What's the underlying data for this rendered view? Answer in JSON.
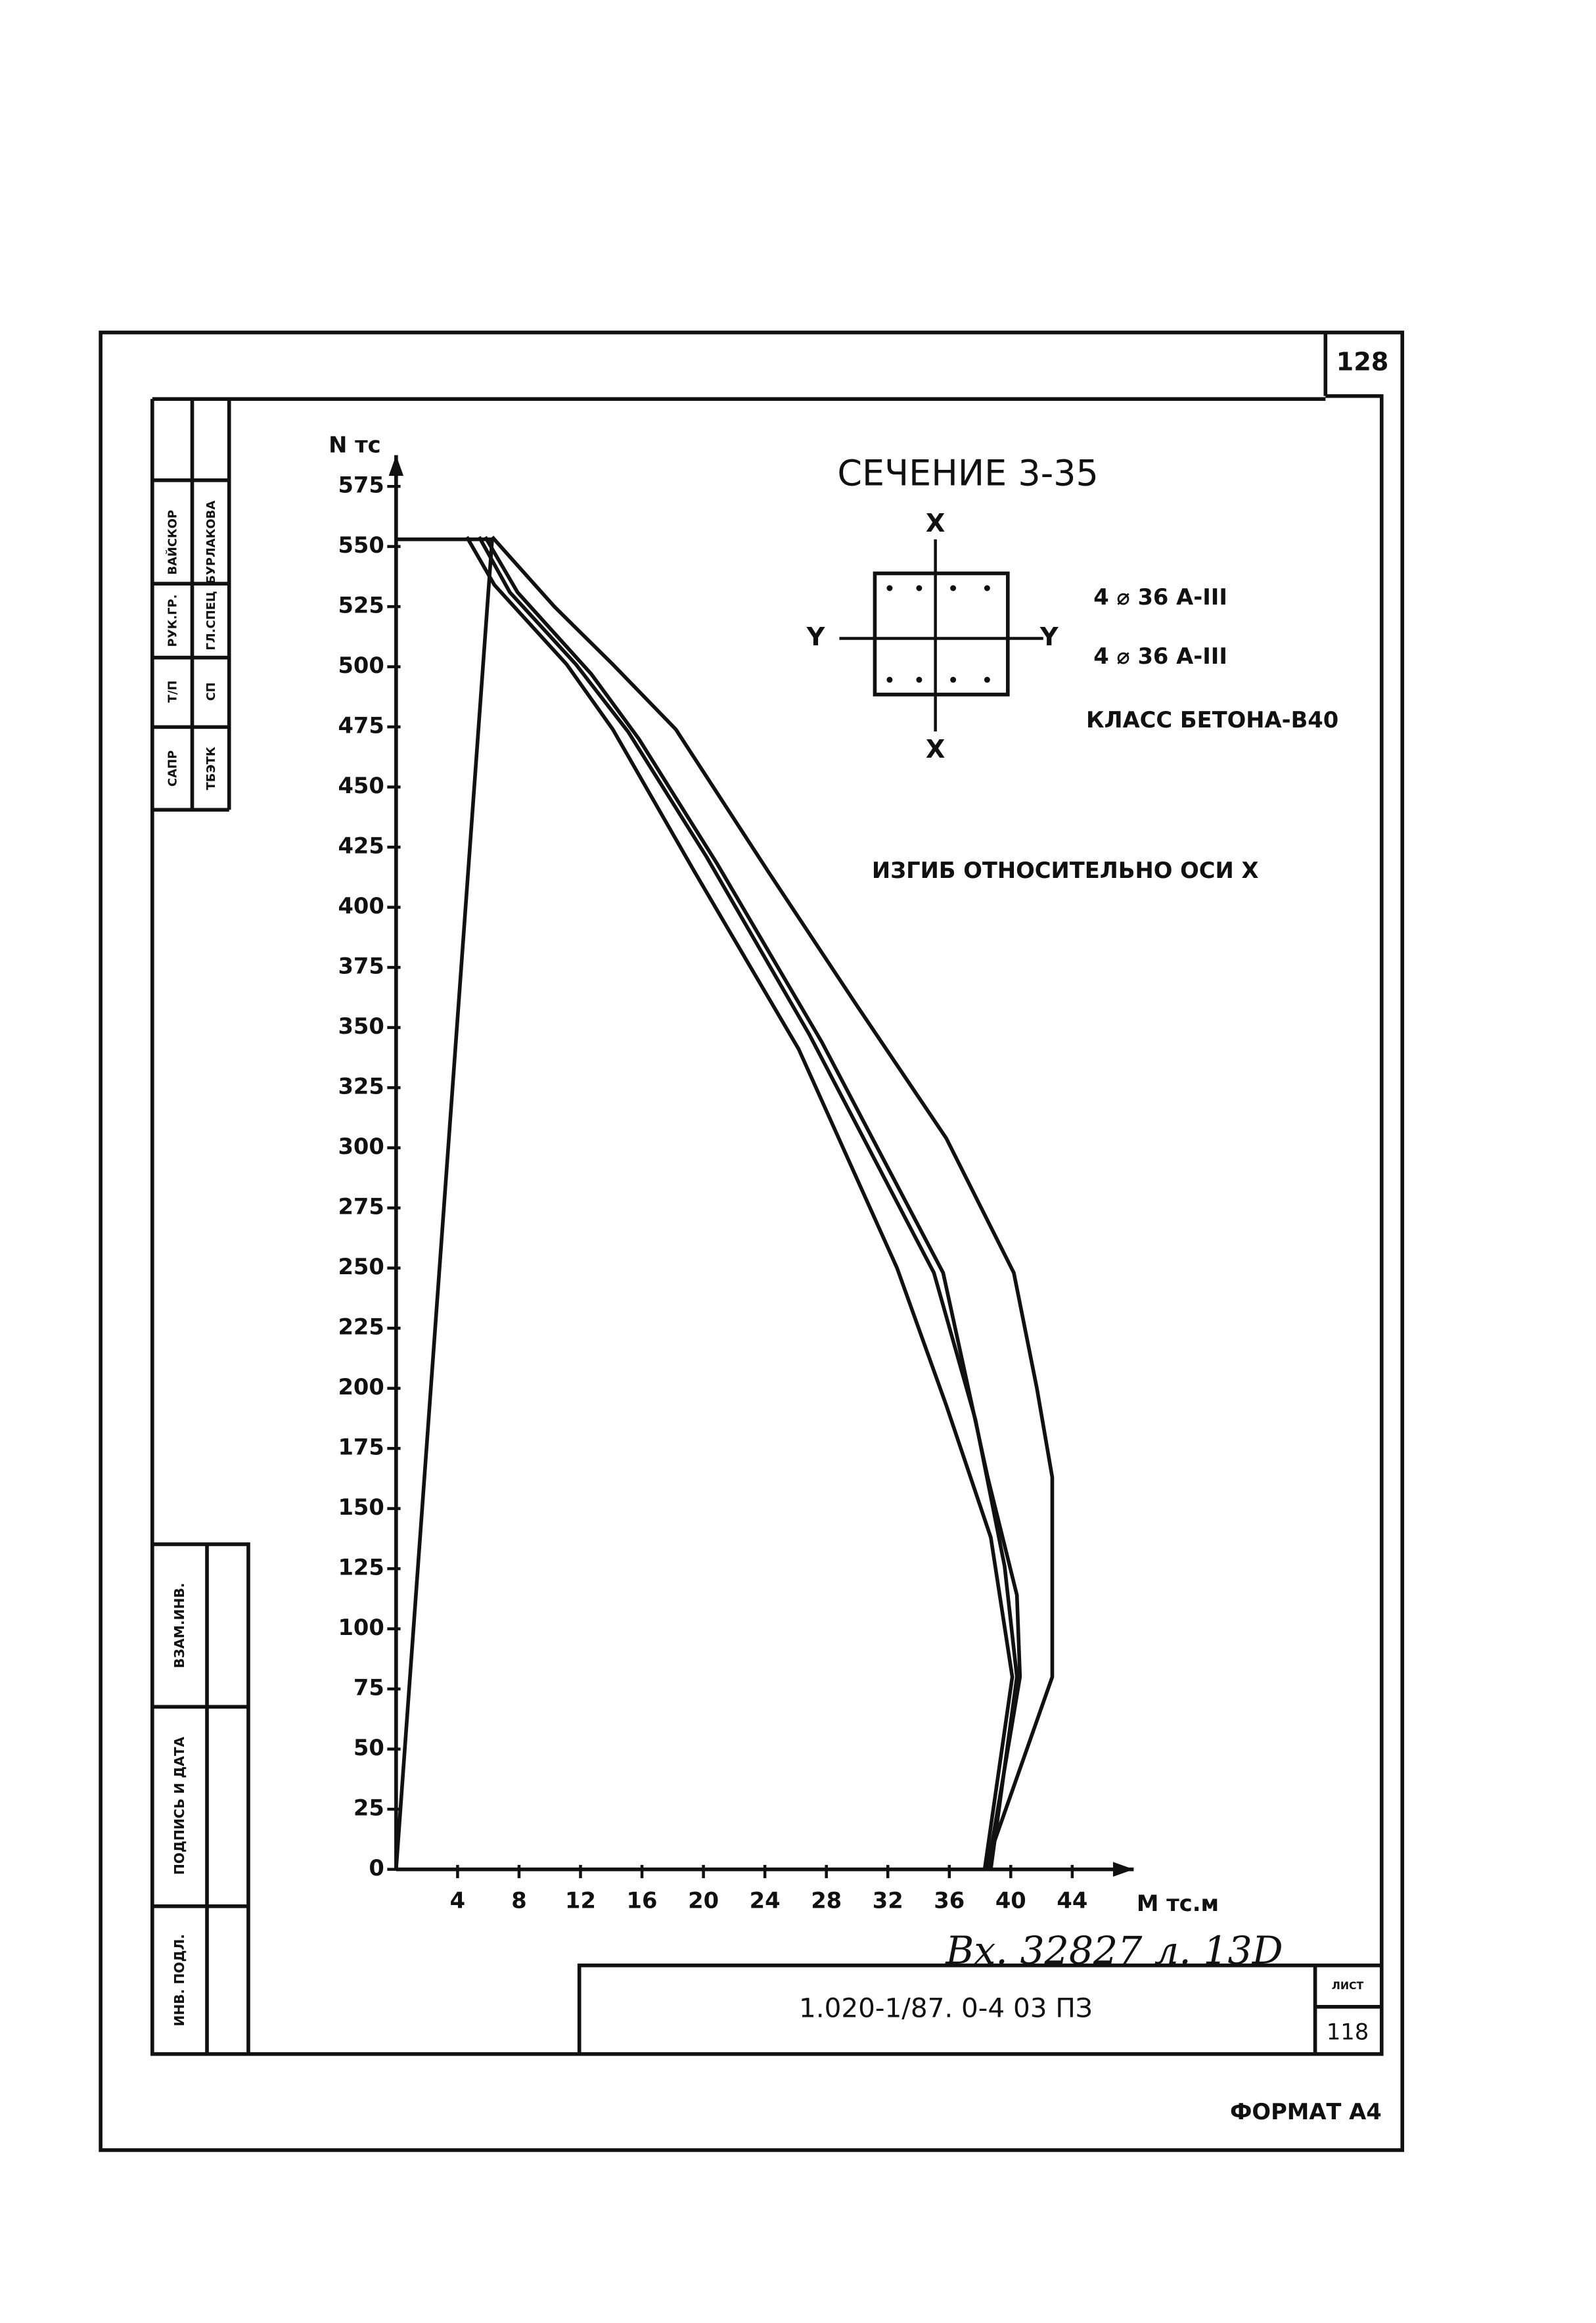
{
  "chart_data": {
    "type": "line",
    "title": "СЕЧЕНИЕ 3-35",
    "x_label": "М тс.м",
    "y_label": "N тс",
    "annotations": [
      "4 ⌀ 36 А-III",
      "4 ⌀ 36 А-III",
      "КЛАСС БЕТОНА-В40",
      "ИЗГИБ ОТНОСИТЕЛЬНО ОСИ Х"
    ],
    "section_axes": [
      "X",
      "X",
      "Y",
      "Y"
    ],
    "xlim": [
      0,
      48
    ],
    "ylim": [
      0,
      588
    ],
    "xticks": [
      4,
      8,
      12,
      16,
      20,
      24,
      28,
      32,
      36,
      40,
      44
    ],
    "yticks": [
      0,
      25,
      50,
      75,
      100,
      125,
      150,
      175,
      200,
      225,
      250,
      275,
      300,
      325,
      350,
      375,
      400,
      425,
      450,
      475,
      500,
      525,
      550,
      575
    ],
    "color": "#111111",
    "series": [
      {
        "x": [
          0,
          6.25,
          0
        ],
        "values": [
          553,
          553,
          0
        ]
      },
      {
        "x": [
          6.25,
          10.3,
          14.1,
          18.2,
          24.2,
          30.0,
          35.8,
          40.2,
          41.7,
          42.7,
          42.7,
          38.3
        ],
        "values": [
          554,
          525,
          501,
          474,
          415,
          359,
          304,
          248,
          200,
          163,
          80,
          0
        ]
      },
      {
        "x": [
          4.6,
          6.4,
          11.1,
          14.1,
          19.4,
          26.2,
          32.6,
          35.8,
          38.7,
          40.1,
          38.3
        ],
        "values": [
          554,
          534,
          501,
          474,
          415,
          341,
          250,
          193,
          138,
          80,
          0
        ]
      },
      {
        "x": [
          5.4,
          7.4,
          11.7,
          15.1,
          20.2,
          26.9,
          35.0,
          37.7,
          39.6,
          40.4,
          38.7
        ],
        "values": [
          554,
          531,
          501,
          473,
          421,
          347,
          248,
          187,
          126,
          80,
          0
        ]
      },
      {
        "x": [
          5.8,
          7.9,
          12.7,
          15.8,
          20.9,
          27.7,
          35.6,
          38.5,
          40.4,
          40.6,
          38.5
        ],
        "values": [
          554,
          531,
          497,
          470,
          418,
          344,
          248,
          163,
          114,
          80,
          0
        ]
      }
    ]
  },
  "document": {
    "sheet_number": "128",
    "code": "1.020-1/87. 0-4 03 ПЗ",
    "sheet_label": "ЛИСТ",
    "sheet": "118",
    "format": "ФОРМАТ А4",
    "handwritten_note": "Вх. 32827 л. 13D",
    "side_stamp": [
      "ВАЙСКОР",
      "РУК.ГР.",
      "Т/П",
      "САПР",
      "БУРЛАКОВА",
      "ГЛ.СПЕЦ",
      "СП",
      "ТБЭТК"
    ],
    "side_fields": [
      "ВЗАМ.ИНВ.",
      "ПОДПИСЬ И ДАТА",
      "ИНВ. ПОДЛ."
    ]
  }
}
